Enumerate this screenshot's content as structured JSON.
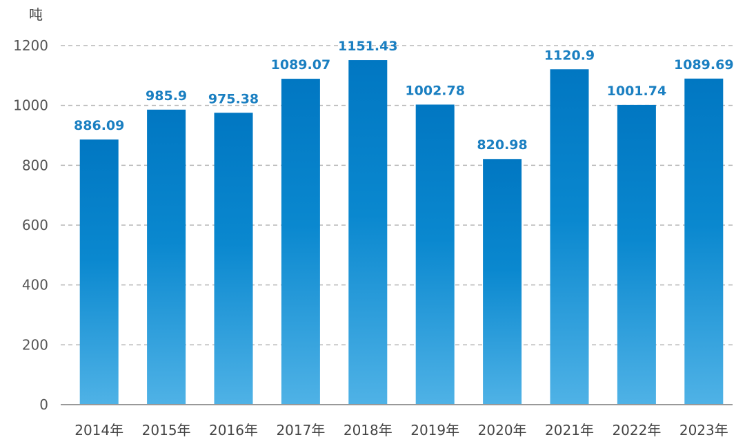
{
  "chart_data": {
    "type": "bar",
    "unit_label": "吨",
    "categories": [
      "2014年",
      "2015年",
      "2016年",
      "2017年",
      "2018年",
      "2019年",
      "2020年",
      "2021年",
      "2022年",
      "2023年"
    ],
    "values": [
      886.09,
      985.9,
      975.38,
      1089.07,
      1151.43,
      1002.78,
      820.98,
      1120.9,
      1001.74,
      1089.69
    ],
    "value_labels": [
      "886.09",
      "985.9",
      "975.38",
      "1089.07",
      "1151.43",
      "1002.78",
      "820.98",
      "1120.9",
      "1001.74",
      "1089.69"
    ],
    "ylim": [
      0,
      1200
    ],
    "yticks": [
      0,
      200,
      400,
      600,
      800,
      1000,
      1200
    ],
    "grid": true,
    "colors": {
      "bar_top": "#0177c2",
      "bar_bottom": "#4fb2e6",
      "label": "#1a7fc1"
    }
  }
}
